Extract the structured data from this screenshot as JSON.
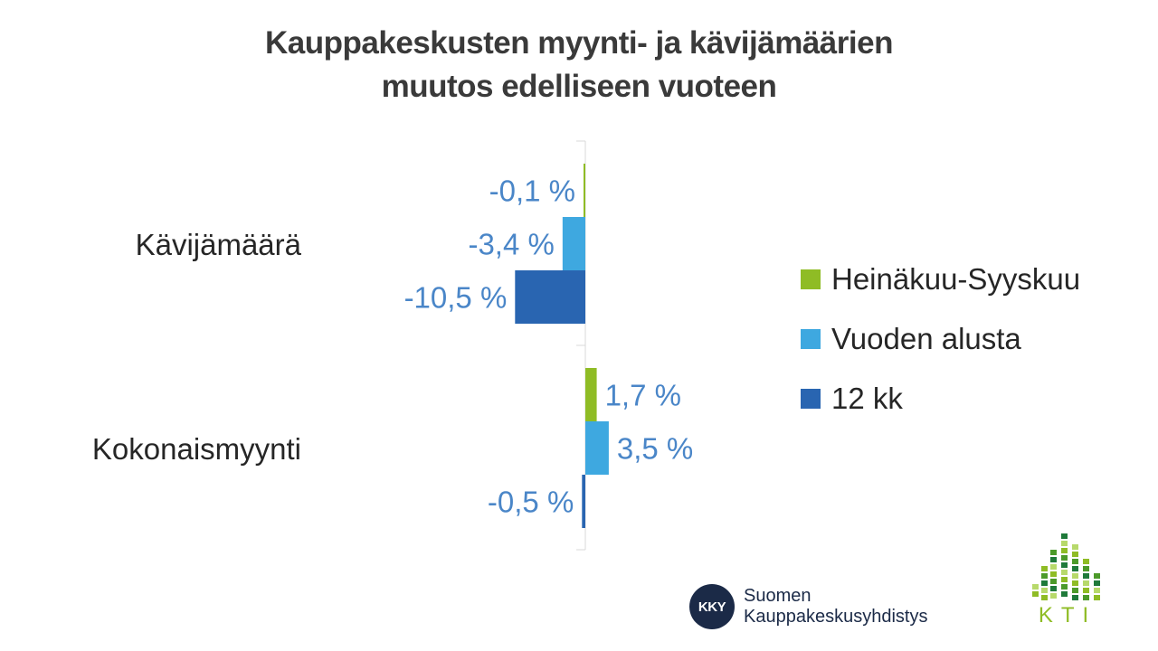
{
  "title_lines": [
    "Kauppakeskusten myynti- ja kävijämäärien",
    "muutos edelliseen vuoteen"
  ],
  "chart_data": {
    "type": "bar",
    "orientation": "horizontal",
    "categories": [
      "Kävijämäärä",
      "Kokonaismyynti"
    ],
    "series": [
      {
        "name": "Heinäkuu-Syyskuu",
        "color": "#8fbc25",
        "values": [
          -0.1,
          1.7
        ],
        "labels": [
          "-0,1 %",
          "1,7 %"
        ]
      },
      {
        "name": "Vuoden alusta",
        "color": "#3ea8e0",
        "values": [
          -3.4,
          3.5
        ],
        "labels": [
          "-3,4 %",
          "3,5 %"
        ]
      },
      {
        "name": "12 kk",
        "color": "#2965b1",
        "values": [
          -10.5,
          -0.5
        ],
        "labels": [
          "-10,5 %",
          "-0,5 %"
        ]
      }
    ],
    "label_color": "#4a86c8",
    "legend_position": "right"
  },
  "logos": {
    "kky_abbr": "KKY",
    "kky_name_line1": "Suomen",
    "kky_name_line2": "Kauppakeskusyhdistys",
    "kti_text": "KTI"
  }
}
